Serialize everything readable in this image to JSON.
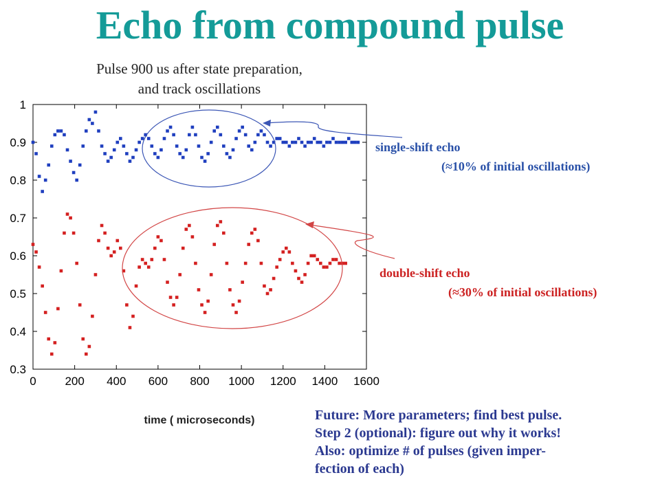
{
  "slide": {
    "title": "Echo from compound pulse",
    "subtitle_line1": "Pulse 900 us after state preparation,",
    "subtitle_line2": "and track oscillations",
    "notes": [
      "Future: More parameters; find best pulse.",
      "Step 2 (optional): figure out why it works!",
      "Also: optimize # of pulses (given imper-",
      "fection of each)"
    ]
  },
  "chart_data": {
    "type": "scatter",
    "title": "",
    "xlabel": "time ( microseconds)",
    "ylabel": "",
    "xlim": [
      0,
      1600
    ],
    "ylim": [
      0.3,
      1
    ],
    "x_ticks": [
      0,
      200,
      400,
      600,
      800,
      1000,
      1200,
      1400,
      1600
    ],
    "y_ticks": [
      0.3,
      0.4,
      0.5,
      0.6,
      0.7,
      0.8,
      0.9,
      1
    ],
    "y_tick_labels": [
      "0.3",
      "0.4",
      "0.5",
      "0.6",
      "0.7",
      "0.8",
      "0.9",
      "1"
    ],
    "grid": false,
    "series": [
      {
        "color": "#1f3fbf",
        "description_points": "upper trace",
        "x": [
          0,
          15,
          30,
          45,
          60,
          75,
          90,
          105,
          120,
          135,
          150,
          165,
          180,
          195,
          210,
          225,
          240,
          255,
          270,
          285,
          300,
          315,
          330,
          345,
          360,
          375,
          390,
          405,
          420,
          435,
          450,
          465,
          480,
          495,
          510,
          525,
          540,
          555,
          570,
          585,
          600,
          615,
          630,
          645,
          660,
          675,
          690,
          705,
          720,
          735,
          750,
          765,
          780,
          795,
          810,
          825,
          840,
          855,
          870,
          885,
          900,
          915,
          930,
          945,
          960,
          975,
          990,
          1005,
          1020,
          1035,
          1050,
          1065,
          1080,
          1095,
          1110,
          1125,
          1140,
          1155,
          1170,
          1185,
          1200,
          1215,
          1230,
          1245,
          1260,
          1275,
          1290,
          1305,
          1320,
          1335,
          1350,
          1365,
          1380,
          1395,
          1410,
          1425,
          1440,
          1455,
          1470,
          1485,
          1500,
          1515,
          1530,
          1545,
          1560
        ],
        "y": [
          0.9,
          0.87,
          0.81,
          0.77,
          0.8,
          0.84,
          0.89,
          0.92,
          0.93,
          0.93,
          0.92,
          0.88,
          0.85,
          0.82,
          0.8,
          0.84,
          0.89,
          0.93,
          0.96,
          0.95,
          0.98,
          0.93,
          0.89,
          0.87,
          0.85,
          0.86,
          0.88,
          0.9,
          0.91,
          0.89,
          0.87,
          0.85,
          0.86,
          0.88,
          0.9,
          0.91,
          0.92,
          0.91,
          0.89,
          0.87,
          0.86,
          0.88,
          0.91,
          0.93,
          0.94,
          0.92,
          0.89,
          0.87,
          0.86,
          0.88,
          0.92,
          0.94,
          0.92,
          0.89,
          0.86,
          0.85,
          0.87,
          0.9,
          0.93,
          0.94,
          0.92,
          0.89,
          0.87,
          0.86,
          0.88,
          0.91,
          0.93,
          0.94,
          0.92,
          0.89,
          0.88,
          0.9,
          0.92,
          0.93,
          0.92,
          0.9,
          0.89,
          0.9,
          0.91,
          0.91,
          0.9,
          0.9,
          0.89,
          0.9,
          0.9,
          0.91,
          0.9,
          0.89,
          0.9,
          0.9,
          0.91,
          0.9,
          0.9,
          0.89,
          0.9,
          0.9,
          0.91,
          0.9,
          0.9,
          0.9,
          0.9,
          0.91,
          0.9,
          0.9,
          0.9
        ]
      },
      {
        "color": "#d42020",
        "x": [
          0,
          15,
          30,
          45,
          60,
          75,
          90,
          105,
          120,
          135,
          150,
          165,
          180,
          195,
          210,
          225,
          240,
          255,
          270,
          285,
          300,
          315,
          330,
          345,
          360,
          375,
          390,
          405,
          420,
          435,
          450,
          465,
          480,
          495,
          510,
          525,
          540,
          555,
          570,
          585,
          600,
          615,
          630,
          645,
          660,
          675,
          690,
          705,
          720,
          735,
          750,
          765,
          780,
          795,
          810,
          825,
          840,
          855,
          870,
          885,
          900,
          915,
          930,
          945,
          960,
          975,
          990,
          1005,
          1020,
          1035,
          1050,
          1065,
          1080,
          1095,
          1110,
          1125,
          1140,
          1155,
          1170,
          1185,
          1200,
          1215,
          1230,
          1245,
          1260,
          1275,
          1290,
          1305,
          1320,
          1335,
          1350,
          1365,
          1380,
          1395,
          1410,
          1425,
          1440,
          1455,
          1470,
          1485,
          1500
        ],
        "y": [
          0.63,
          0.61,
          0.57,
          0.52,
          0.45,
          0.38,
          0.34,
          0.37,
          0.46,
          0.56,
          0.66,
          0.71,
          0.7,
          0.66,
          0.58,
          0.47,
          0.38,
          0.34,
          0.36,
          0.44,
          0.55,
          0.64,
          0.68,
          0.66,
          0.62,
          0.6,
          0.61,
          0.64,
          0.62,
          0.56,
          0.47,
          0.41,
          0.44,
          0.52,
          0.57,
          0.59,
          0.58,
          0.57,
          0.59,
          0.62,
          0.65,
          0.64,
          0.59,
          0.53,
          0.49,
          0.47,
          0.49,
          0.55,
          0.62,
          0.67,
          0.68,
          0.65,
          0.58,
          0.51,
          0.47,
          0.45,
          0.48,
          0.55,
          0.63,
          0.68,
          0.69,
          0.66,
          0.58,
          0.51,
          0.47,
          0.45,
          0.48,
          0.53,
          0.58,
          0.63,
          0.66,
          0.67,
          0.64,
          0.58,
          0.52,
          0.5,
          0.51,
          0.54,
          0.57,
          0.59,
          0.61,
          0.62,
          0.61,
          0.58,
          0.56,
          0.54,
          0.53,
          0.55,
          0.58,
          0.6,
          0.6,
          0.59,
          0.58,
          0.57,
          0.57,
          0.58,
          0.59,
          0.59,
          0.58,
          0.58,
          0.58
        ]
      }
    ],
    "annotations": [
      {
        "text": "single-shift echo",
        "detail": "(≈10% of initial oscillations)",
        "color": "#2a51a8"
      },
      {
        "text": "double-shift echo",
        "detail": "(≈30% of initial oscillations)",
        "color": "#cc2222"
      }
    ]
  }
}
